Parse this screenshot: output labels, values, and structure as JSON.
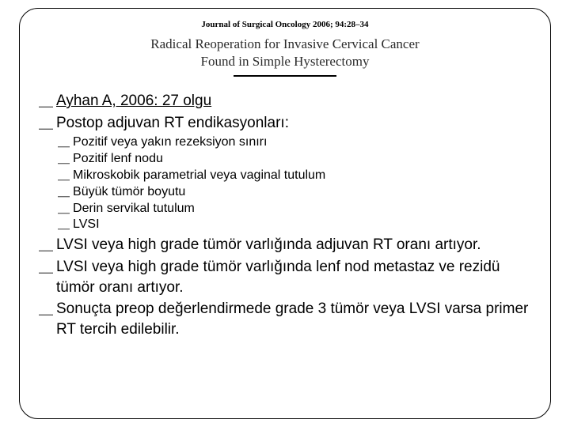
{
  "journal_ref": "Journal of Surgical Oncology 2006; 94:28–34",
  "paper_title_line1": "Radical Reoperation for Invasive Cervical Cancer",
  "paper_title_line2": "Found in Simple Hysterectomy",
  "main_items": {
    "m0": "Ayhan A, 2006: 27 olgu",
    "m1": "Postop adjuvan RT endikasyonları:",
    "m2": "LVSI veya high grade tümör varlığında adjuvan RT oranı artıyor.",
    "m3": "LVSI veya high grade tümör varlığında lenf nod metastaz ve rezidü tümör oranı artıyor.",
    "m4": "Sonuçta preop değerlendirmede grade 3 tümör veya LVSI varsa primer RT tercih edilebilir."
  },
  "sub_items": {
    "s0": "Pozitif veya yakın rezeksiyon sınırı",
    "s1": "Pozitif lenf nodu",
    "s2": "Mikroskobik parametrial veya vaginal tutulum",
    "s3": "Büyük tümör boyutu",
    "s4": "Derin servikal tutulum",
    "s5": "LVSI"
  },
  "bullet_glyph": "⸏"
}
